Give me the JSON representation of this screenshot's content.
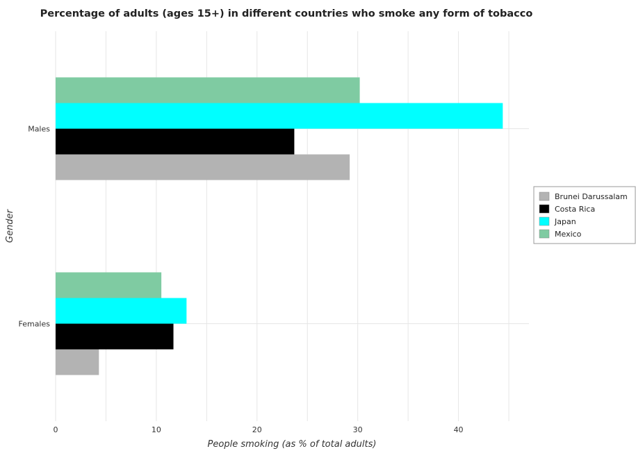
{
  "chart_data": {
    "type": "bar",
    "orientation": "horizontal",
    "title": "Percentage of adults (ages 15+) in different countries who smoke any form of tobacco",
    "xlabel": "People smoking (as % of total adults)",
    "ylabel": "Gender",
    "categories": [
      "Females",
      "Males"
    ],
    "xlim": [
      0,
      47
    ],
    "xticks": [
      0,
      10,
      20,
      30,
      40
    ],
    "grid": true,
    "legend_position": "right",
    "series": [
      {
        "name": "Brunei Darussalam",
        "color": "#b3b3b3",
        "values": [
          4.3,
          29.2
        ]
      },
      {
        "name": "Costa Rica",
        "color": "#000000",
        "values": [
          11.7,
          23.7
        ]
      },
      {
        "name": "Japan",
        "color": "#00ffff",
        "values": [
          13.0,
          44.4
        ]
      },
      {
        "name": "Mexico",
        "color": "#7fcba2",
        "values": [
          10.5,
          30.2
        ]
      }
    ]
  }
}
